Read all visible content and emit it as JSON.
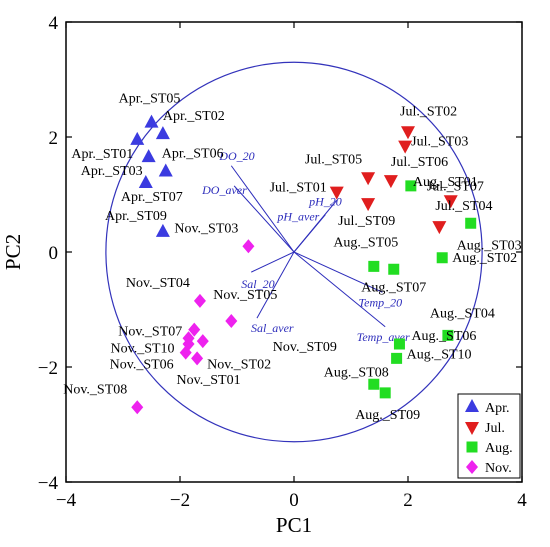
{
  "chart_data": {
    "type": "scatter",
    "title": "",
    "xlabel": "PC1",
    "ylabel": "PC2",
    "xlim": [
      -4,
      4
    ],
    "ylim": [
      -4,
      4
    ],
    "xticks": [
      "−4",
      "−2",
      "0",
      "2",
      "4"
    ],
    "yticks": [
      "4",
      "2",
      "0",
      "−2",
      "−4"
    ],
    "grid": false,
    "legend_position": "bottom-right",
    "correlation_circle_radius": 3.3,
    "series": [
      {
        "name": "Apr.",
        "marker": "triangle-up",
        "color": "#3B3BE0",
        "points": [
          {
            "label": "Apr._ST05",
            "x": -2.5,
            "y": 2.25
          },
          {
            "label": "Apr._ST02",
            "x": -2.3,
            "y": 2.05
          },
          {
            "label": "Apr._ST06",
            "x": -2.25,
            "y": 1.4
          },
          {
            "label": "Apr._ST01",
            "x": -2.75,
            "y": 1.95
          },
          {
            "label": "Apr._ST03",
            "x": -2.55,
            "y": 1.65
          },
          {
            "label": "Apr._ST07",
            "x": -2.6,
            "y": 1.2
          },
          {
            "label": "Apr._ST09",
            "x": -2.3,
            "y": 0.35
          }
        ]
      },
      {
        "name": "Jul.",
        "marker": "triangle-down",
        "color": "#E01E1E",
        "points": [
          {
            "label": "Jul._ST02",
            "x": 2.0,
            "y": 2.1
          },
          {
            "label": "Jul._ST03",
            "x": 1.95,
            "y": 1.85
          },
          {
            "label": "Jul._ST05",
            "x": 1.3,
            "y": 1.3
          },
          {
            "label": "Jul._ST06",
            "x": 1.7,
            "y": 1.25
          },
          {
            "label": "Jul._ST01",
            "x": 0.75,
            "y": 1.05
          },
          {
            "label": "Jul._ST09",
            "x": 1.3,
            "y": 0.85
          },
          {
            "label": "Jul._ST07",
            "x": 2.75,
            "y": 0.9
          },
          {
            "label": "Jul._ST04",
            "x": 2.55,
            "y": 0.45
          }
        ]
      },
      {
        "name": "Aug.",
        "marker": "square",
        "color": "#22DD22",
        "points": [
          {
            "label": "Aug._ST01",
            "x": 2.05,
            "y": 1.15
          },
          {
            "label": "Aug._ST03",
            "x": 3.1,
            "y": 0.5
          },
          {
            "label": "Aug._ST02",
            "x": 2.6,
            "y": -0.1
          },
          {
            "label": "Aug._ST05",
            "x": 1.4,
            "y": -0.25
          },
          {
            "label": "Aug._ST07",
            "x": 1.75,
            "y": -0.3
          },
          {
            "label": "Aug._ST04",
            "x": 2.7,
            "y": -1.45
          },
          {
            "label": "Aug._ST06",
            "x": 1.85,
            "y": -1.6
          },
          {
            "label": "Aug._ST10",
            "x": 1.8,
            "y": -1.85
          },
          {
            "label": "Aug._ST08",
            "x": 1.4,
            "y": -2.3
          },
          {
            "label": "Aug._ST09",
            "x": 1.6,
            "y": -2.45
          }
        ]
      },
      {
        "name": "Nov.",
        "marker": "diamond",
        "color": "#EE22EE",
        "points": [
          {
            "label": "Nov._ST03",
            "x": -0.8,
            "y": 0.1
          },
          {
            "label": "Nov._ST04",
            "x": -1.65,
            "y": -0.85
          },
          {
            "label": "Nov._ST05",
            "x": -1.1,
            "y": -1.2
          },
          {
            "label": "Nov._ST07",
            "x": -1.75,
            "y": -1.35
          },
          {
            "label": "Nov._ST10",
            "x": -1.85,
            "y": -1.5
          },
          {
            "label": "Nov._ST09",
            "x": -1.6,
            "y": -1.55
          },
          {
            "label": "Nov._ST06",
            "x": -1.9,
            "y": -1.75
          },
          {
            "label": "Nov._ST02",
            "x": -1.7,
            "y": -1.85
          },
          {
            "label": "Nov._ST01",
            "x": -1.85,
            "y": -1.6
          },
          {
            "label": "Nov._ST08",
            "x": -2.75,
            "y": -2.7
          }
        ]
      }
    ],
    "loadings": [
      {
        "label": "DO_20",
        "x": -1.1,
        "y": 1.5
      },
      {
        "label": "DO_aver",
        "x": -1.05,
        "y": 1.15
      },
      {
        "label": "pH_aver",
        "x": 0.55,
        "y": 0.65
      },
      {
        "label": "pH_20",
        "x": 0.75,
        "y": 0.9
      },
      {
        "label": "Sal_20",
        "x": -0.75,
        "y": -0.35
      },
      {
        "label": "Sal_aver",
        "x": -0.65,
        "y": -1.15
      },
      {
        "label": "Temp_20",
        "x": 1.55,
        "y": -0.7
      },
      {
        "label": "Temp_aver",
        "x": 1.6,
        "y": -1.3
      }
    ]
  }
}
